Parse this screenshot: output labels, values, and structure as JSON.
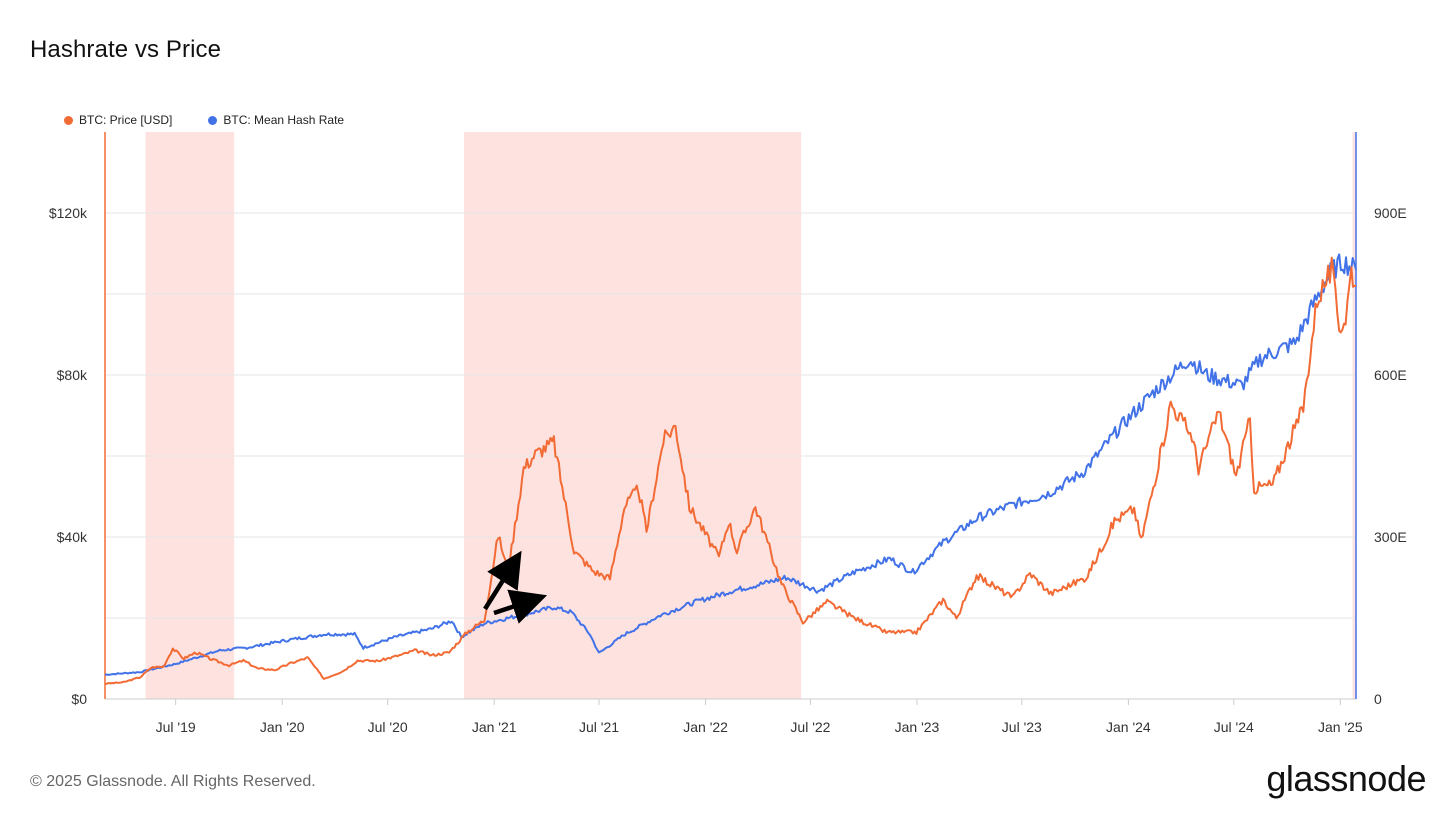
{
  "title": "Hashrate vs Price",
  "footer": {
    "copyright": "© 2025 Glassnode. All Rights Reserved.",
    "logo": "glassnode"
  },
  "colors": {
    "price": "#f26b35",
    "hashrate": "#4272e8",
    "shade": "#fde2df",
    "grid": "#e6e6e6",
    "arrow": "#000000"
  },
  "chart_data": {
    "type": "line",
    "x_range": [
      "2019-03-01",
      "2025-01-28"
    ],
    "x_ticks": [
      "Jul '19",
      "Jan '20",
      "Jul '20",
      "Jan '21",
      "Jul '21",
      "Jan '22",
      "Jul '22",
      "Jan '23",
      "Jul '23",
      "Jan '24",
      "Jul '24",
      "Jan '25"
    ],
    "x_tick_dates": [
      "2019-07-01",
      "2020-01-01",
      "2020-07-01",
      "2021-01-01",
      "2021-07-01",
      "2022-01-01",
      "2022-07-01",
      "2023-01-01",
      "2023-07-01",
      "2024-01-01",
      "2024-07-01",
      "2025-01-01"
    ],
    "y_left": {
      "ylim": [
        0,
        140000
      ],
      "ticks": [
        0,
        40000,
        80000,
        120000
      ],
      "tick_labels": [
        "$0",
        "$40k",
        "$80k",
        "$120k"
      ]
    },
    "y_right": {
      "ylim": [
        0,
        1050
      ],
      "ticks": [
        0,
        300,
        600,
        900
      ],
      "tick_labels": [
        "0",
        "300E",
        "600E",
        "900E"
      ]
    },
    "grid": true,
    "legend_position": "top-left",
    "shaded_regions": [
      {
        "start": "2019-05-10",
        "end": "2019-10-10"
      },
      {
        "start": "2020-11-10",
        "end": "2022-06-15"
      },
      {
        "start": "2025-01-22",
        "end": "2025-01-28"
      }
    ],
    "series": [
      {
        "name": "BTC: Price [USD]",
        "axis": "left",
        "points": [
          [
            "2019-03-01",
            3800
          ],
          [
            "2019-04-01",
            4100
          ],
          [
            "2019-05-01",
            5400
          ],
          [
            "2019-05-20",
            7800
          ],
          [
            "2019-06-10",
            8000
          ],
          [
            "2019-06-26",
            12500
          ],
          [
            "2019-07-15",
            10000
          ],
          [
            "2019-08-05",
            11500
          ],
          [
            "2019-09-01",
            9800
          ],
          [
            "2019-10-01",
            8300
          ],
          [
            "2019-10-26",
            9500
          ],
          [
            "2019-11-20",
            7500
          ],
          [
            "2019-12-20",
            7200
          ],
          [
            "2020-01-15",
            8800
          ],
          [
            "2020-02-14",
            10200
          ],
          [
            "2020-03-13",
            5000
          ],
          [
            "2020-04-15",
            6900
          ],
          [
            "2020-05-10",
            9500
          ],
          [
            "2020-06-15",
            9400
          ],
          [
            "2020-07-27",
            11000
          ],
          [
            "2020-08-17",
            12000
          ],
          [
            "2020-09-15",
            10800
          ],
          [
            "2020-10-15",
            11500
          ],
          [
            "2020-11-15",
            16500
          ],
          [
            "2020-12-15",
            19500
          ],
          [
            "2021-01-08",
            40500
          ],
          [
            "2021-01-25",
            31500
          ],
          [
            "2021-02-21",
            57000
          ],
          [
            "2021-03-13",
            60500
          ],
          [
            "2021-04-14",
            63500
          ],
          [
            "2021-05-19",
            36500
          ],
          [
            "2021-06-22",
            31500
          ],
          [
            "2021-07-20",
            29800
          ],
          [
            "2021-08-14",
            47500
          ],
          [
            "2021-09-07",
            52000
          ],
          [
            "2021-09-21",
            41500
          ],
          [
            "2021-10-20",
            64000
          ],
          [
            "2021-11-10",
            67500
          ],
          [
            "2021-12-04",
            47500
          ],
          [
            "2022-01-24",
            35000
          ],
          [
            "2022-02-10",
            44000
          ],
          [
            "2022-02-24",
            36500
          ],
          [
            "2022-03-28",
            47500
          ],
          [
            "2022-05-12",
            28500
          ],
          [
            "2022-06-18",
            19000
          ],
          [
            "2022-07-30",
            24000
          ],
          [
            "2022-09-15",
            20000
          ],
          [
            "2022-11-09",
            16500
          ],
          [
            "2022-12-31",
            16500
          ],
          [
            "2023-02-15",
            24500
          ],
          [
            "2023-03-10",
            20000
          ],
          [
            "2023-04-14",
            30500
          ],
          [
            "2023-06-15",
            25000
          ],
          [
            "2023-07-15",
            31000
          ],
          [
            "2023-08-20",
            26000
          ],
          [
            "2023-10-20",
            30000
          ],
          [
            "2023-11-15",
            37000
          ],
          [
            "2023-12-08",
            44000
          ],
          [
            "2024-01-11",
            47000
          ],
          [
            "2024-01-23",
            39000
          ],
          [
            "2024-02-28",
            62000
          ],
          [
            "2024-03-14",
            73000
          ],
          [
            "2024-04-20",
            65000
          ],
          [
            "2024-05-01",
            57000
          ],
          [
            "2024-06-05",
            71000
          ],
          [
            "2024-07-05",
            55000
          ],
          [
            "2024-07-29",
            69000
          ],
          [
            "2024-08-05",
            52000
          ],
          [
            "2024-09-06",
            53000
          ],
          [
            "2024-10-29",
            72000
          ],
          [
            "2024-11-22",
            99000
          ],
          [
            "2024-12-17",
            106000
          ],
          [
            "2024-12-30",
            92000
          ],
          [
            "2025-01-10",
            94000
          ],
          [
            "2025-01-20",
            106000
          ],
          [
            "2025-01-28",
            102000
          ]
        ]
      },
      {
        "name": "BTC: Mean Hash Rate",
        "axis": "right",
        "points": [
          [
            "2019-03-01",
            45
          ],
          [
            "2019-05-01",
            50
          ],
          [
            "2019-07-01",
            65
          ],
          [
            "2019-09-15",
            90
          ],
          [
            "2019-11-01",
            95
          ],
          [
            "2020-01-15",
            110
          ],
          [
            "2020-03-15",
            120
          ],
          [
            "2020-05-05",
            120
          ],
          [
            "2020-05-20",
            95
          ],
          [
            "2020-07-15",
            115
          ],
          [
            "2020-09-15",
            130
          ],
          [
            "2020-10-20",
            145
          ],
          [
            "2020-11-05",
            115
          ],
          [
            "2020-12-15",
            140
          ],
          [
            "2021-02-15",
            155
          ],
          [
            "2021-04-15",
            170
          ],
          [
            "2021-05-15",
            160
          ],
          [
            "2021-06-15",
            120
          ],
          [
            "2021-07-01",
            85
          ],
          [
            "2021-08-15",
            120
          ],
          [
            "2021-10-15",
            155
          ],
          [
            "2021-12-15",
            180
          ],
          [
            "2022-02-15",
            200
          ],
          [
            "2022-04-15",
            215
          ],
          [
            "2022-05-20",
            225
          ],
          [
            "2022-07-15",
            200
          ],
          [
            "2022-09-15",
            235
          ],
          [
            "2022-11-15",
            260
          ],
          [
            "2022-12-25",
            235
          ],
          [
            "2023-02-15",
            290
          ],
          [
            "2023-04-15",
            335
          ],
          [
            "2023-06-15",
            360
          ],
          [
            "2023-08-15",
            380
          ],
          [
            "2023-10-15",
            420
          ],
          [
            "2023-11-15",
            460
          ],
          [
            "2023-12-15",
            500
          ],
          [
            "2024-02-15",
            570
          ],
          [
            "2024-04-15",
            630
          ],
          [
            "2024-05-15",
            600
          ],
          [
            "2024-07-15",
            580
          ],
          [
            "2024-08-15",
            630
          ],
          [
            "2024-10-15",
            660
          ],
          [
            "2024-11-15",
            730
          ],
          [
            "2024-12-15",
            790
          ],
          [
            "2025-01-05",
            810
          ],
          [
            "2025-01-28",
            795
          ]
        ]
      }
    ]
  }
}
